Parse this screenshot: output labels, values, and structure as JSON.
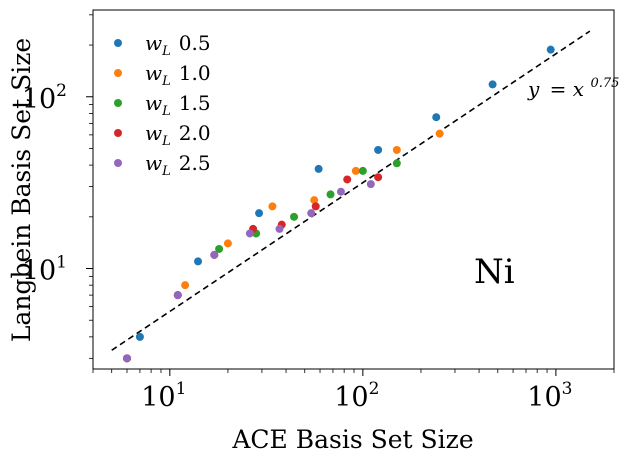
{
  "chart_data": {
    "type": "scatter",
    "xlabel": "ACE Basis Set Size",
    "ylabel": "Langbein Basis Set Size",
    "xscale": "log",
    "yscale": "log",
    "xlim": [
      4,
      2000
    ],
    "ylim": [
      2.6,
      320
    ],
    "x_tick_labels": [
      "10",
      "10",
      "10"
    ],
    "x_tick_exponents": [
      "1",
      "2",
      "3"
    ],
    "y_tick_labels": [
      "10",
      "10"
    ],
    "y_tick_exponents": [
      "1",
      "2"
    ],
    "grid": false,
    "legend_position": "top-left",
    "legend": [
      {
        "prefix": "w",
        "subscript": "L",
        "value": "0.5",
        "color": "#1f77b4"
      },
      {
        "prefix": "w",
        "subscript": "L",
        "value": "1.0",
        "color": "#ff7f0e"
      },
      {
        "prefix": "w",
        "subscript": "L",
        "value": "1.5",
        "color": "#2ca02c"
      },
      {
        "prefix": "w",
        "subscript": "L",
        "value": "2.0",
        "color": "#d62728"
      },
      {
        "prefix": "w",
        "subscript": "L",
        "value": "2.5",
        "color": "#9467bd"
      }
    ],
    "series": [
      {
        "color": "#1f77b4",
        "points": [
          [
            7,
            4
          ],
          [
            14,
            11
          ],
          [
            29,
            21
          ],
          [
            59,
            38
          ],
          [
            120,
            49
          ],
          [
            240,
            76
          ],
          [
            470,
            118
          ],
          [
            940,
            188
          ]
        ]
      },
      {
        "color": "#ff7f0e",
        "points": [
          [
            6,
            3
          ],
          [
            12,
            8
          ],
          [
            20,
            14
          ],
          [
            34,
            23
          ],
          [
            56,
            25
          ],
          [
            92,
            37
          ],
          [
            150,
            49
          ],
          [
            250,
            61
          ]
        ]
      },
      {
        "color": "#2ca02c",
        "points": [
          [
            6,
            3
          ],
          [
            11,
            7
          ],
          [
            18,
            13
          ],
          [
            28,
            16
          ],
          [
            44,
            20
          ],
          [
            68,
            27
          ],
          [
            100,
            37
          ],
          [
            150,
            41
          ]
        ]
      },
      {
        "color": "#d62728",
        "points": [
          [
            6,
            3
          ],
          [
            11,
            7
          ],
          [
            17,
            12
          ],
          [
            27,
            17
          ],
          [
            38,
            18
          ],
          [
            57,
            23
          ],
          [
            83,
            33
          ],
          [
            120,
            34
          ]
        ]
      },
      {
        "color": "#9467bd",
        "points": [
          [
            6,
            3
          ],
          [
            11,
            7
          ],
          [
            17,
            12
          ],
          [
            26,
            16
          ],
          [
            37,
            17
          ],
          [
            54,
            21
          ],
          [
            77,
            28
          ],
          [
            110,
            31
          ]
        ]
      }
    ],
    "fit_line": {
      "label_base": "y",
      "label_mid": "= x",
      "exponent": "0.75",
      "exponent_value": 0.75,
      "x_range": [
        5,
        1500
      ],
      "color": "#000000"
    },
    "element_label": "Ni"
  }
}
